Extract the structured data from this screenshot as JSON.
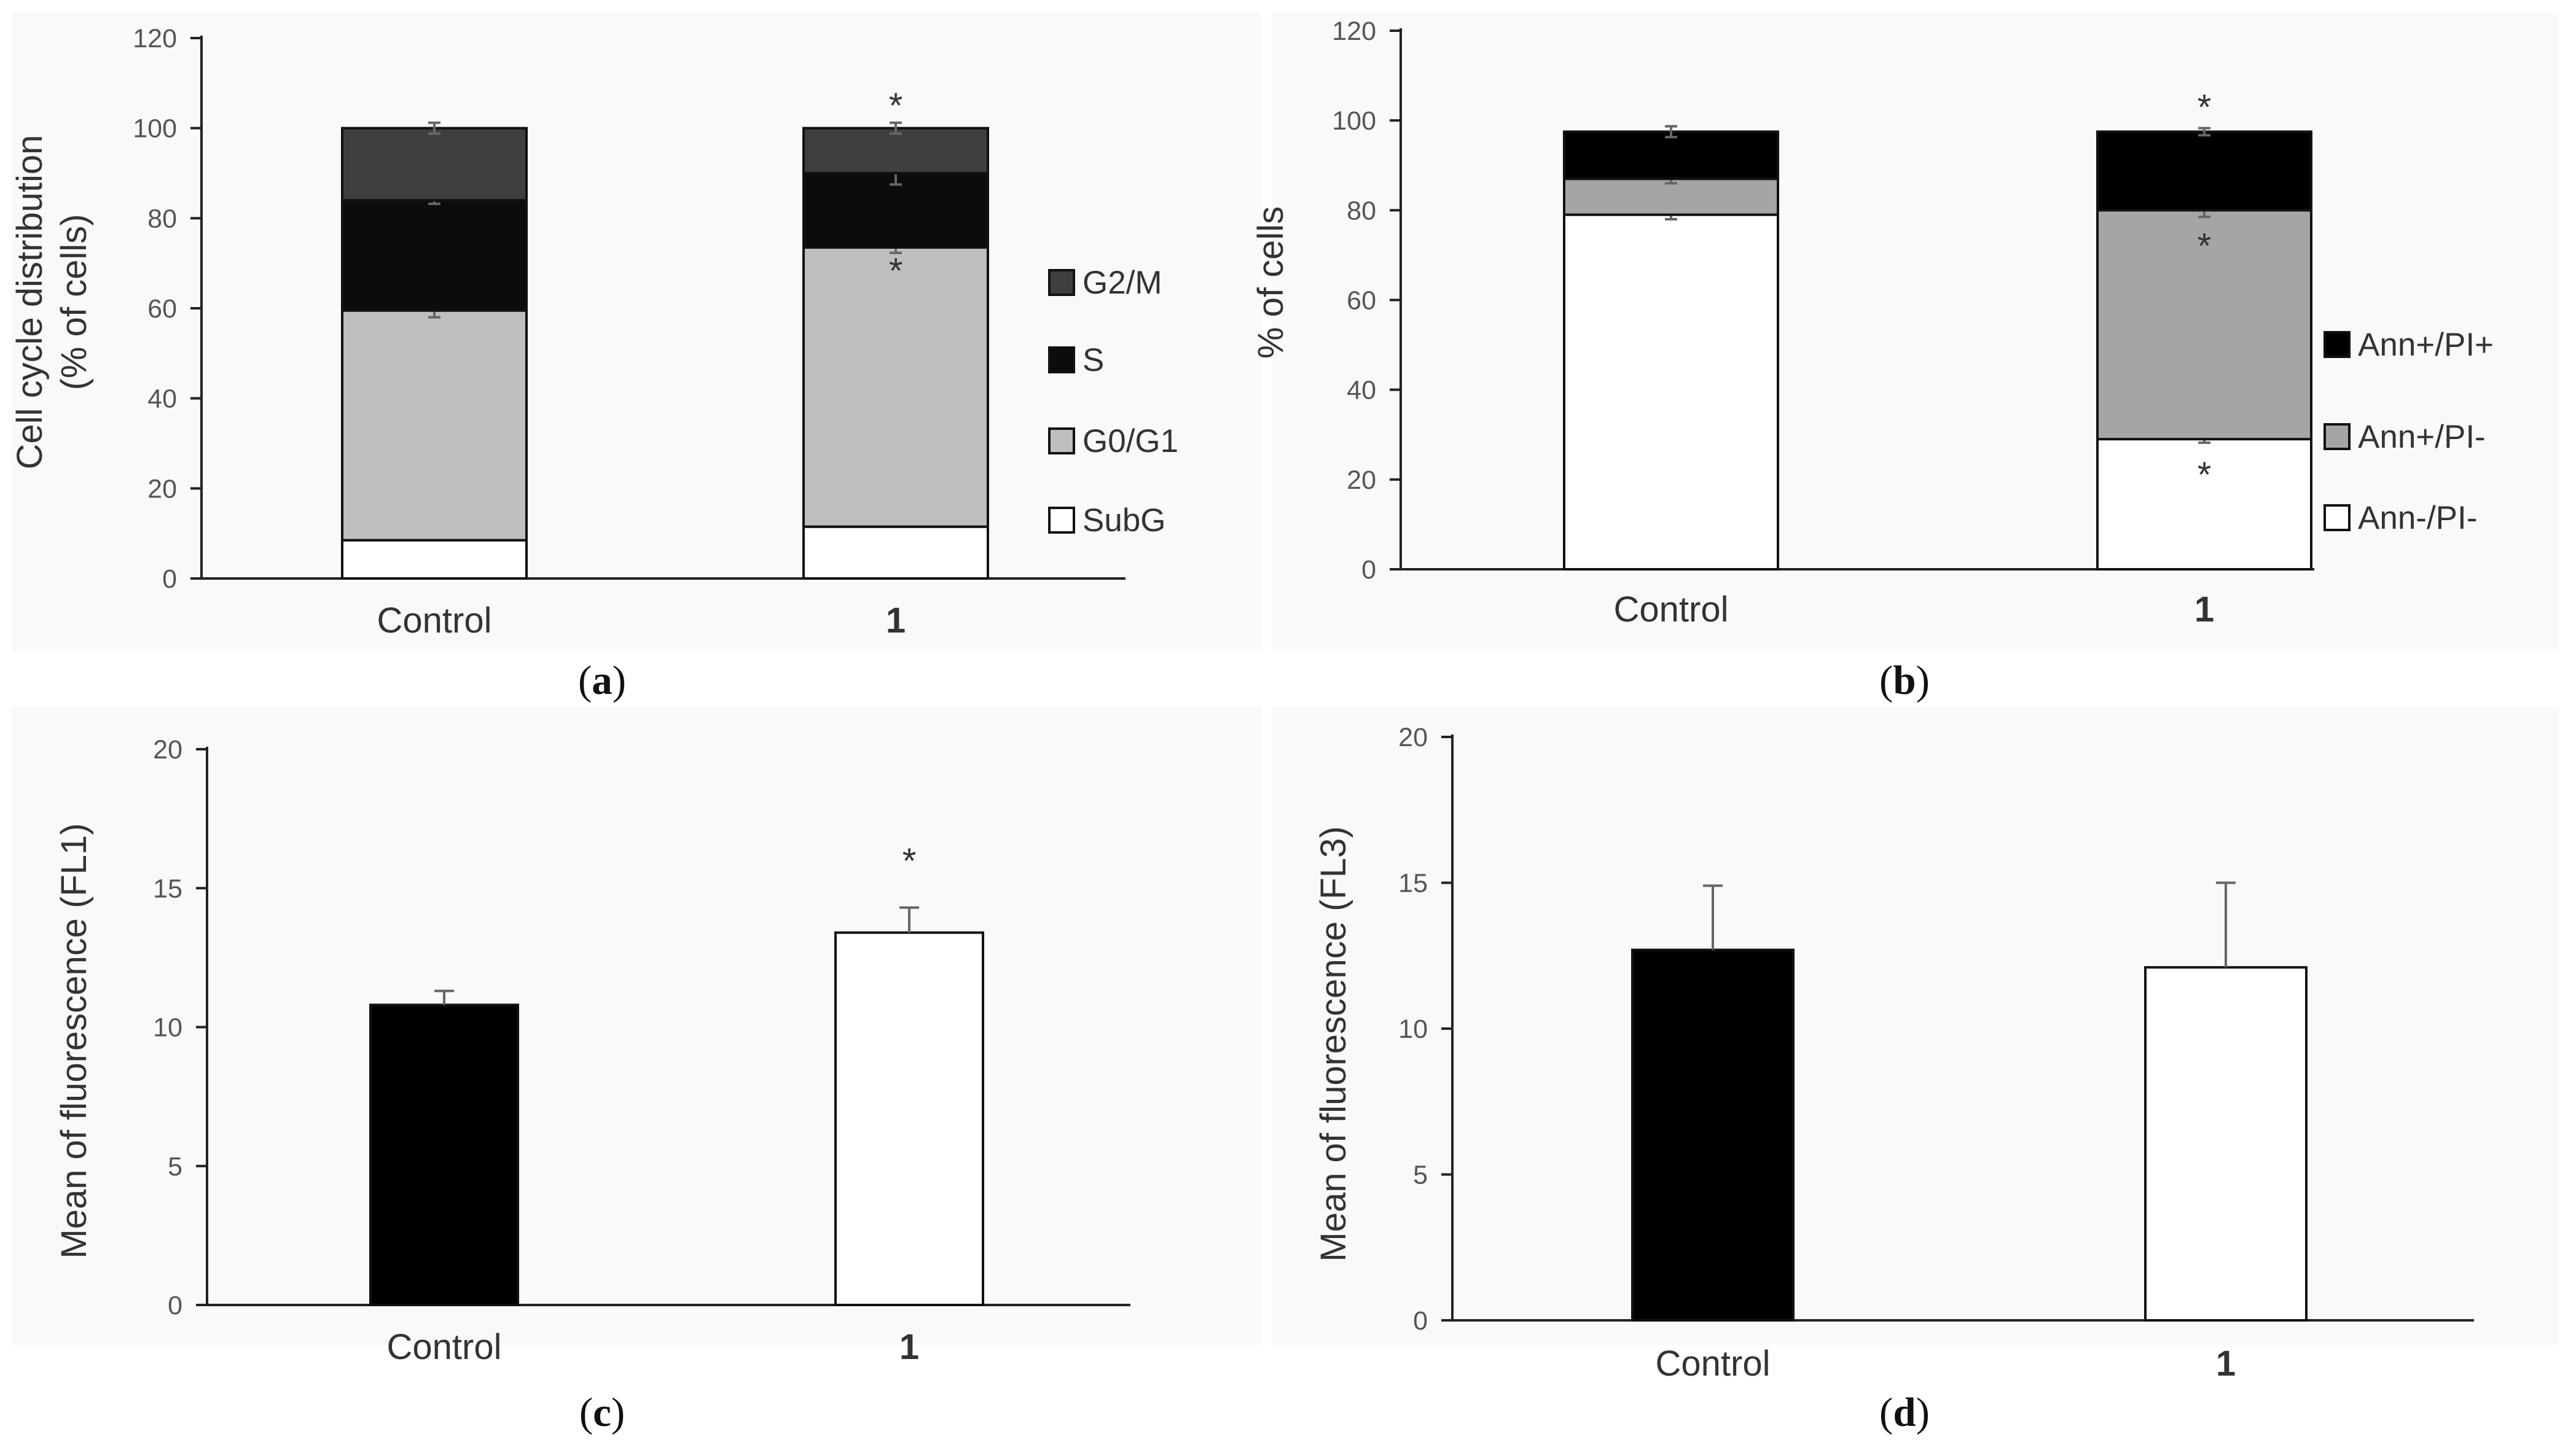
{
  "colors": {
    "G2/M": "#3e3e3e",
    "S": "#0c0c0c",
    "G0/G1": "#bebebe",
    "SubG": "#ffffff",
    "Ann+/PI+": "#000000",
    "Ann+/PI-": "#a5a5a5",
    "Ann-/PI-": "#ffffff",
    "black": "#000000",
    "white": "#ffffff"
  },
  "chart_data": [
    {
      "id": "a",
      "type": "bar",
      "stacked": true,
      "panel_label": "a",
      "ylabel": "Cell cycle distribution",
      "ylabel2": "(% of cells)",
      "ylim": [
        0,
        120
      ],
      "yticks": [
        0,
        20,
        40,
        60,
        80,
        100,
        120
      ],
      "categories": [
        "Control",
        "1"
      ],
      "category_bold": [
        false,
        true
      ],
      "series": [
        {
          "name": "SubG",
          "values": [
            8.5,
            11.5
          ],
          "errors": [
            0,
            0
          ],
          "sig": [
            false,
            false
          ]
        },
        {
          "name": "G0/G1",
          "values": [
            51,
            62
          ],
          "errors": [
            1.5,
            1.2
          ],
          "sig": [
            false,
            true
          ]
        },
        {
          "name": "S",
          "values": [
            24.5,
            16.5
          ],
          "errors": [
            0.8,
            2.5
          ],
          "sig": [
            false,
            true
          ]
        },
        {
          "name": "G2/M",
          "values": [
            16,
            10
          ],
          "errors": [
            1.2,
            1.2
          ],
          "sig": [
            false,
            true
          ]
        }
      ],
      "legend": [
        "G2/M",
        "S",
        "G0/G1",
        "SubG"
      ]
    },
    {
      "id": "b",
      "type": "bar",
      "stacked": true,
      "panel_label": "b",
      "ylabel": "% of cells",
      "ylim": [
        0,
        120
      ],
      "yticks": [
        0,
        20,
        40,
        60,
        80,
        100,
        120
      ],
      "categories": [
        "Control",
        "1"
      ],
      "category_bold": [
        false,
        true
      ],
      "series": [
        {
          "name": "Ann-/PI-",
          "values": [
            79,
            29
          ],
          "errors": [
            1,
            0.8
          ],
          "sig": [
            false,
            true
          ]
        },
        {
          "name": "Ann+/PI-",
          "values": [
            8,
            51
          ],
          "errors": [
            1,
            1.5
          ],
          "sig": [
            false,
            true
          ]
        },
        {
          "name": "Ann+/PI+",
          "values": [
            10.5,
            17.5
          ],
          "errors": [
            1.2,
            0.8
          ],
          "sig": [
            false,
            true
          ]
        }
      ],
      "legend": [
        "Ann+/PI+",
        "Ann+/PI-",
        "Ann-/PI-"
      ]
    },
    {
      "id": "c",
      "type": "bar",
      "panel_label": "c",
      "ylabel": "Mean of fluorescence (FL1)",
      "ylim": [
        0,
        20
      ],
      "yticks": [
        0,
        5,
        10,
        15,
        20
      ],
      "categories": [
        "Control",
        "1"
      ],
      "category_bold": [
        false,
        true
      ],
      "values": [
        10.8,
        13.4
      ],
      "errors": [
        0.5,
        0.9
      ],
      "bar_colors": [
        "black",
        "white"
      ],
      "sig": [
        false,
        true
      ]
    },
    {
      "id": "d",
      "type": "bar",
      "panel_label": "d",
      "ylabel": "Mean of fluorescence (FL3)",
      "ylim": [
        0,
        20
      ],
      "yticks": [
        0,
        5,
        10,
        15,
        20
      ],
      "categories": [
        "Control",
        "1"
      ],
      "category_bold": [
        false,
        true
      ],
      "values": [
        12.7,
        12.1
      ],
      "errors": [
        2.2,
        2.9
      ],
      "bar_colors": [
        "black",
        "white"
      ],
      "sig": [
        false,
        false
      ]
    }
  ]
}
